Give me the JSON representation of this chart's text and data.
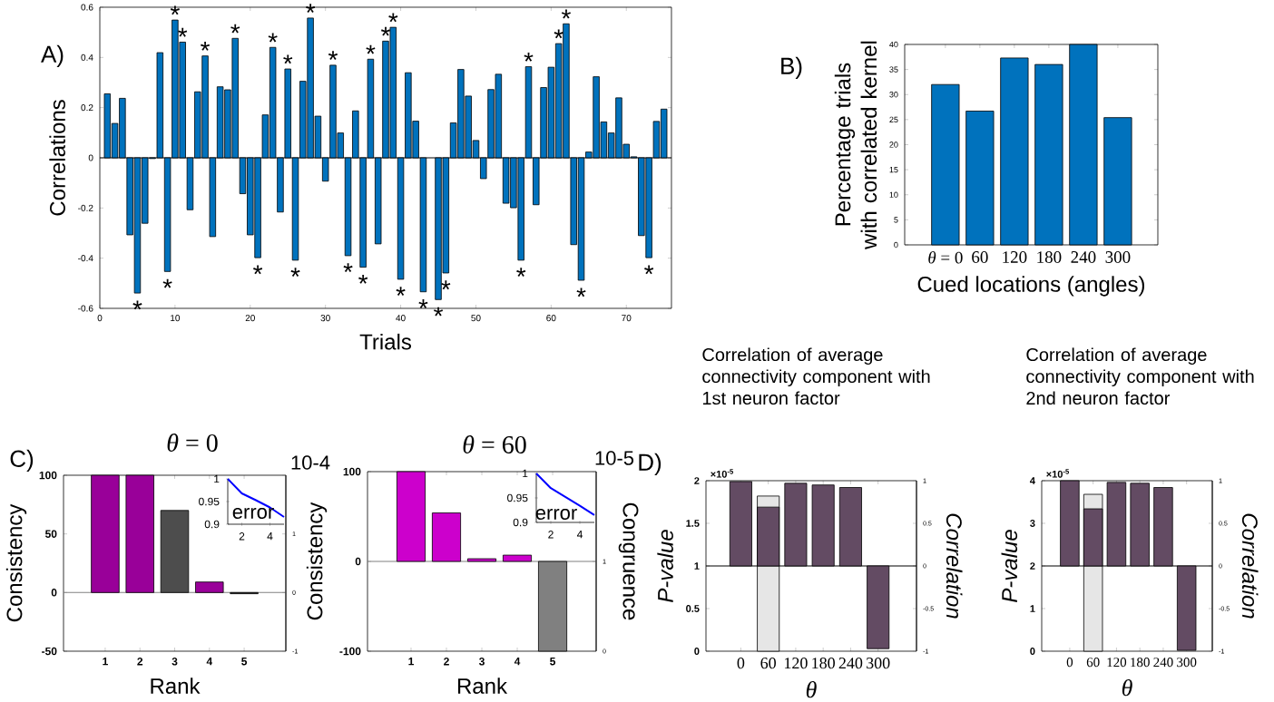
{
  "chart_data": [
    {
      "type": "bar",
      "xlabel": "Trials",
      "ylabel": "Correlations",
      "color": "#0072bd",
      "x": [
        1,
        2,
        3,
        4,
        5,
        6,
        7,
        8,
        9,
        10,
        11,
        12,
        13,
        14,
        15,
        16,
        17,
        18,
        19,
        20,
        21,
        22,
        23,
        24,
        25,
        26,
        27,
        28,
        29,
        30,
        31,
        32,
        33,
        34,
        35,
        36,
        37,
        38,
        39,
        40,
        41,
        42,
        43,
        44,
        45,
        46,
        47,
        48,
        49,
        50,
        51,
        52,
        53,
        54,
        55,
        56,
        57,
        58,
        59,
        60,
        61,
        62,
        63,
        64,
        65,
        66,
        67,
        68,
        69,
        70,
        71,
        72,
        73,
        74,
        75
      ],
      "values": [
        0.255,
        0.137,
        0.237,
        -0.307,
        -0.539,
        -0.261,
        -0.003,
        0.419,
        -0.453,
        0.549,
        0.461,
        -0.207,
        0.263,
        0.406,
        -0.314,
        0.283,
        0.271,
        0.476,
        -0.143,
        -0.307,
        -0.398,
        0.171,
        0.44,
        -0.216,
        0.354,
        -0.408,
        0.305,
        0.557,
        0.166,
        -0.093,
        0.369,
        0.099,
        -0.39,
        0.187,
        -0.436,
        0.393,
        -0.343,
        0.465,
        0.52,
        -0.484,
        0.339,
        0.146,
        -0.534,
        null,
        -0.565,
        -0.459,
        0.139,
        0.352,
        0.246,
        0.069,
        -0.083,
        0.272,
        0.333,
        -0.181,
        -0.199,
        -0.408,
        0.363,
        -0.187,
        0.28,
        0.361,
        0.455,
        0.534,
        -0.346,
        -0.488,
        0.023,
        0.323,
        0.143,
        0.099,
        0.239,
        0.054,
        0.004,
        -0.31,
        -0.398,
        0.145,
        0.194
      ],
      "xlim": [
        0,
        76
      ],
      "xticks": [
        0,
        10,
        20,
        30,
        40,
        50,
        60,
        70
      ],
      "ylim": [
        -0.6,
        0.6
      ],
      "yticks": [
        -0.6,
        -0.4,
        -0.2,
        0,
        0.2,
        0.4,
        0.6
      ],
      "annotations": [
        "A)",
        {
          "text": "*",
          "x": 5,
          "y": -0.539
        },
        {
          "text": "*",
          "x": 9,
          "y": -0.453
        },
        {
          "text": "*",
          "x": 10,
          "y": 0.549
        },
        {
          "text": "*",
          "x": 11,
          "y": 0.461
        },
        {
          "text": "*",
          "x": 14,
          "y": 0.406
        },
        {
          "text": "*",
          "x": 18,
          "y": 0.476
        },
        {
          "text": "*",
          "x": 21,
          "y": -0.398
        },
        {
          "text": "*",
          "x": 23,
          "y": 0.44
        },
        {
          "text": "*",
          "x": 25,
          "y": 0.354
        },
        {
          "text": "*",
          "x": 26,
          "y": -0.408
        },
        {
          "text": "*",
          "x": 28,
          "y": 0.557
        },
        {
          "text": "*",
          "x": 31,
          "y": 0.369
        },
        {
          "text": "*",
          "x": 33,
          "y": -0.39
        },
        {
          "text": "*",
          "x": 35,
          "y": -0.436
        },
        {
          "text": "*",
          "x": 36,
          "y": 0.393
        },
        {
          "text": "*",
          "x": 38,
          "y": 0.465
        },
        {
          "text": "*",
          "x": 39,
          "y": 0.52
        },
        {
          "text": "*",
          "x": 40,
          "y": -0.484
        },
        {
          "text": "*",
          "x": 43,
          "y": -0.534
        },
        {
          "text": "*",
          "x": 45,
          "y": -0.565
        },
        {
          "text": "*",
          "x": 46,
          "y": -0.459
        },
        {
          "text": "*",
          "x": 56,
          "y": -0.408
        },
        {
          "text": "*",
          "x": 57,
          "y": 0.363
        },
        {
          "text": "*",
          "x": 61,
          "y": 0.455
        },
        {
          "text": "*",
          "x": 62,
          "y": 0.534
        },
        {
          "text": "*",
          "x": 64,
          "y": -0.488
        },
        {
          "text": "*",
          "x": 73,
          "y": -0.398
        }
      ]
    },
    {
      "type": "bar",
      "xlabel": "Cued locations (angles)",
      "ylabel": "Percentage trials with correlated kernel",
      "color": "#0072bd",
      "categories": [
        "*θ* = 0",
        "60",
        "120",
        "180",
        "240",
        "300"
      ],
      "values": [
        32,
        26.7,
        37.3,
        36,
        40,
        25.4
      ],
      "ylim": [
        0,
        40
      ],
      "yticks": [
        0,
        5,
        10,
        15,
        20,
        25,
        30,
        35,
        40
      ],
      "annotations": [
        "B)"
      ]
    },
    {
      "type": "bar",
      "title": "*θ* = 0",
      "xlabel": "Rank",
      "ylabel": "Consistency",
      "categories": [
        "1",
        "2",
        "3",
        "4",
        "5"
      ],
      "values": [
        100,
        100,
        70,
        9,
        -1
      ],
      "colors": [
        "#990099",
        "#990099",
        "#4d4d4d",
        "#990099",
        "#1a1a1a"
      ],
      "ylim": [
        -50,
        100
      ],
      "yticks": [
        -50,
        0,
        50,
        100
      ],
      "y2lim": [
        -1,
        2
      ],
      "y2ticks": [
        -1,
        0,
        1,
        {
          "value": 2,
          "label": null
        }
      ],
      "annotations": [
        "C)",
        "10-4"
      ]
    },
    {
      "type": "line",
      "color": "#0000ff",
      "x": [
        1,
        2,
        3,
        4,
        5
      ],
      "values": [
        1,
        0.968,
        0.953,
        0.937,
        0.916
      ],
      "xlim": [
        1,
        5
      ],
      "xticks": [
        2,
        4
      ],
      "ylim": [
        0.9,
        1
      ],
      "yticks": [
        0.9,
        0.95,
        1
      ],
      "annotations": [
        "error"
      ]
    },
    {
      "type": "bar",
      "title": "*θ* = 60",
      "xlabel": "Rank",
      "ylabel": "Consistency",
      "y2label": "Congruence",
      "categories": [
        "1",
        "2",
        "3",
        "4",
        "5"
      ],
      "values": [
        100,
        54,
        3,
        7,
        -100
      ],
      "colors": [
        "#cc00cc",
        "#cc00cc",
        "#cc00cc",
        "#cc00cc",
        "#808080"
      ],
      "ylim": [
        -100,
        100
      ],
      "yticks": [
        -100,
        0,
        100
      ],
      "y2lim": [
        0,
        2
      ],
      "y2ticks": [
        0,
        1,
        {
          "value": 2,
          "label": null
        }
      ],
      "annotations": [
        "10-5"
      ]
    },
    {
      "type": "line",
      "color": "#0000ff",
      "x": [
        1,
        2,
        3,
        4,
        5
      ],
      "values": [
        1,
        0.97,
        0.952,
        0.934,
        0.915
      ],
      "xlim": [
        1,
        5
      ],
      "xticks": [
        2,
        4
      ],
      "ylim": [
        0.9,
        1
      ],
      "yticks": [
        0.9,
        0.95,
        1
      ],
      "annotations": [
        "error"
      ]
    },
    {
      "type": "bar",
      "title": "Correlation of average connectivity component with 1st neuron factor",
      "xlabel": "θ",
      "ylabel": "P-value",
      "y2label": "Correlation",
      "categories": [
        "0",
        "60",
        "120",
        "180",
        "240",
        "300"
      ],
      "series": [
        {
          "color": "#e6e6e6",
          "values": [
            null,
            1.82,
            null,
            null,
            null,
            null
          ]
        },
        {
          "color": "#634b63",
          "axis": "y2",
          "values": [
            0.99,
            0.69,
            0.97,
            0.95,
            0.92,
            -0.97
          ]
        }
      ],
      "ylim": [
        0,
        2
      ],
      "yticks": [
        0,
        0.5,
        1,
        1.5,
        2
      ],
      "y2lim": [
        -1,
        1
      ],
      "y2ticks": [
        -1,
        -0.5,
        0,
        0.5,
        1
      ],
      "annotations": [
        "D)",
        "×10$^{-5}$"
      ]
    },
    {
      "type": "bar",
      "title": "Correlation of average connectivity component with 2nd neuron factor",
      "xlabel": "θ",
      "ylabel": "P-value",
      "y2label": "Correlation",
      "categories": [
        "0",
        "60",
        "120",
        "180",
        "240",
        "300"
      ],
      "series": [
        {
          "color": "#e6e6e6",
          "values": [
            null,
            3.68,
            null,
            null,
            null,
            null
          ]
        },
        {
          "color": "#634b63",
          "axis": "y2",
          "values": [
            1,
            0.67,
            0.98,
            0.97,
            0.92,
            -0.99
          ]
        }
      ],
      "ylim": [
        0,
        4
      ],
      "yticks": [
        0,
        1,
        2,
        3,
        4
      ],
      "y2lim": [
        -1,
        1
      ],
      "y2ticks": [
        -1,
        -0.5,
        0,
        0.5,
        1
      ],
      "annotations": [
        "×10$^{-5}$"
      ]
    }
  ]
}
